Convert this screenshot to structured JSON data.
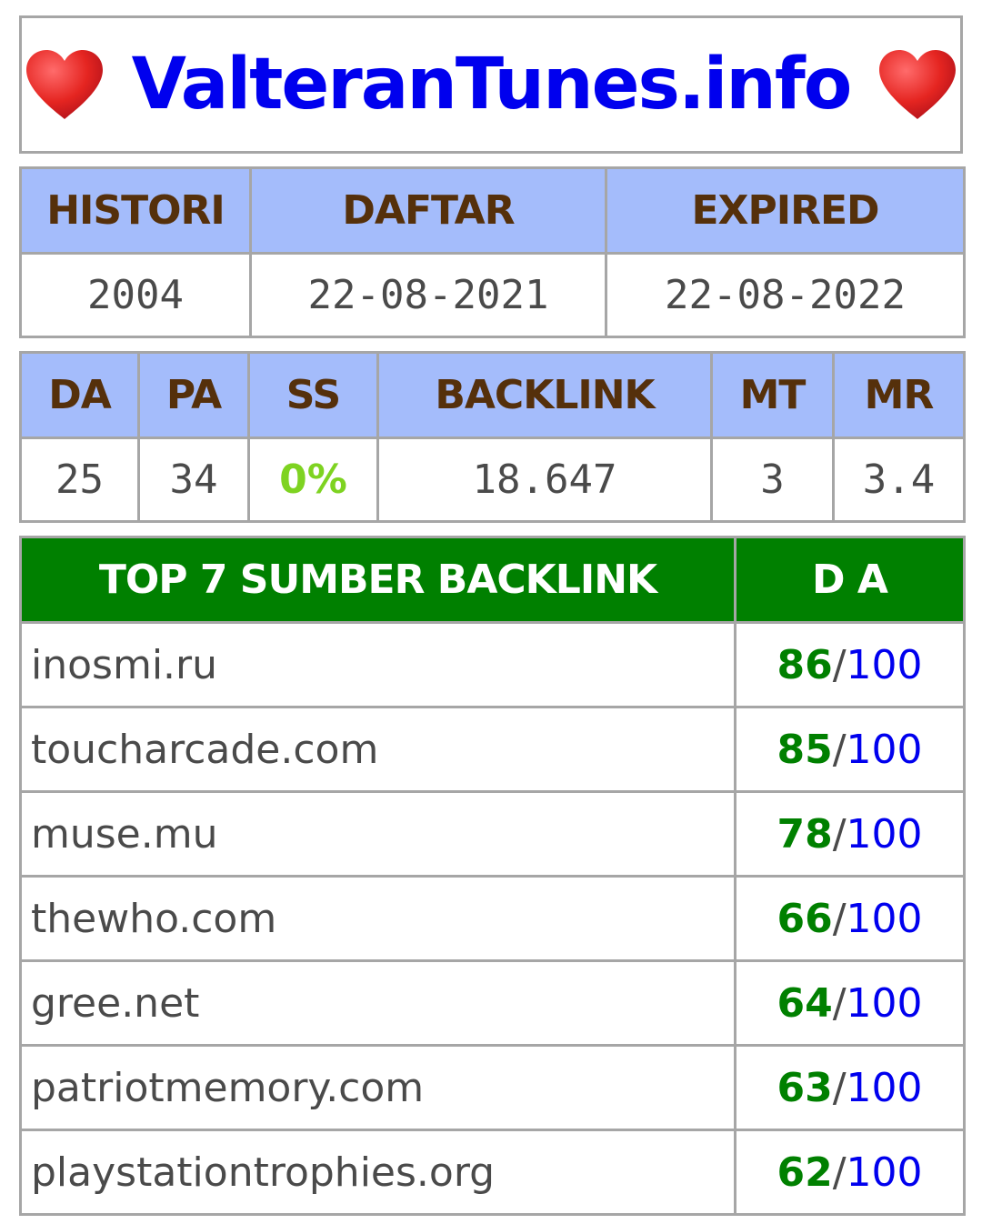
{
  "site": {
    "title": "ValteranTunes.info",
    "heart_icon": "red-heart-icon",
    "title_color": "#0000ee"
  },
  "info": {
    "headers": [
      "HISTORI",
      "DAFTAR",
      "EXPIRED"
    ],
    "values": [
      "2004",
      "22-08-2021",
      "22-08-2022"
    ]
  },
  "metrics": {
    "headers": [
      "DA",
      "PA",
      "SS",
      "BACKLINK",
      "MT",
      "MR"
    ],
    "values": [
      "25",
      "34",
      "0%",
      "18.647",
      "3",
      "3.4"
    ],
    "ss_color": "#7ed321"
  },
  "top_sources": {
    "header_source": "TOP 7 SUMBER BACKLINK",
    "header_da": "D A",
    "rows": [
      {
        "domain": "inosmi.ru",
        "da": "86",
        "sep": "/",
        "max": "100"
      },
      {
        "domain": "toucharcade.com",
        "da": "85",
        "sep": "/",
        "max": "100"
      },
      {
        "domain": "muse.mu",
        "da": "78",
        "sep": "/",
        "max": "100"
      },
      {
        "domain": "thewho.com",
        "da": "66",
        "sep": "/",
        "max": "100"
      },
      {
        "domain": "gree.net",
        "da": "64",
        "sep": "/",
        "max": "100"
      },
      {
        "domain": "patriotmemory.com",
        "da": "63",
        "sep": "/",
        "max": "100"
      },
      {
        "domain": "playstationtrophies.org",
        "da": "62",
        "sep": "/",
        "max": "100"
      }
    ]
  },
  "colors": {
    "header_blue": "#a4bcfb",
    "header_text_brown": "#55300b",
    "header_green": "#008000",
    "da_green": "#008000",
    "link_blue": "#0000ee"
  }
}
